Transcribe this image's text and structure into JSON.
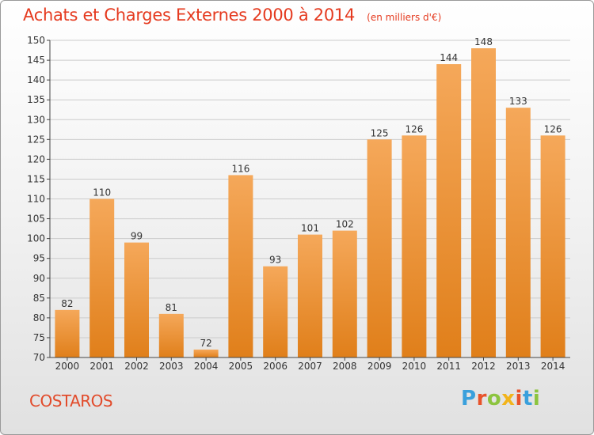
{
  "header": {
    "title": "Achats et Charges Externes 2000 à 2014",
    "unit": "(en milliers d'€)"
  },
  "footer": {
    "commune": "COSTAROS",
    "logo_text": "Proxiti",
    "logo_colors": [
      "#3aa0dc",
      "#e8532b",
      "#8cc43f",
      "#f2b41b",
      "#e8532b",
      "#3aa0dc",
      "#8cc43f"
    ]
  },
  "colors": {
    "bar_top": "#f5a85a",
    "bar_bottom": "#e07f1a",
    "title": "#e53a1f",
    "axis": "#444444",
    "grid": "#cccccc"
  },
  "chart_data": {
    "type": "bar",
    "title": "Achats et Charges Externes 2000 à 2014",
    "subtitle": "(en milliers d'€)",
    "xlabel": "",
    "ylabel": "",
    "ylim": [
      70,
      150
    ],
    "yticks": [
      70,
      75,
      80,
      85,
      90,
      95,
      100,
      105,
      110,
      115,
      120,
      125,
      130,
      135,
      140,
      145,
      150
    ],
    "grid": "horizontal",
    "categories": [
      "2000",
      "2001",
      "2002",
      "2003",
      "2004",
      "2005",
      "2006",
      "2007",
      "2008",
      "2009",
      "2010",
      "2011",
      "2012",
      "2013",
      "2014"
    ],
    "values": [
      82,
      110,
      99,
      81,
      72,
      116,
      93,
      101,
      102,
      125,
      126,
      144,
      148,
      133,
      126
    ],
    "data_labels": [
      "82",
      "110",
      "99",
      "81",
      "72",
      "116",
      "93",
      "101",
      "102",
      "125",
      "126",
      "144",
      "148",
      "133",
      "126"
    ]
  }
}
